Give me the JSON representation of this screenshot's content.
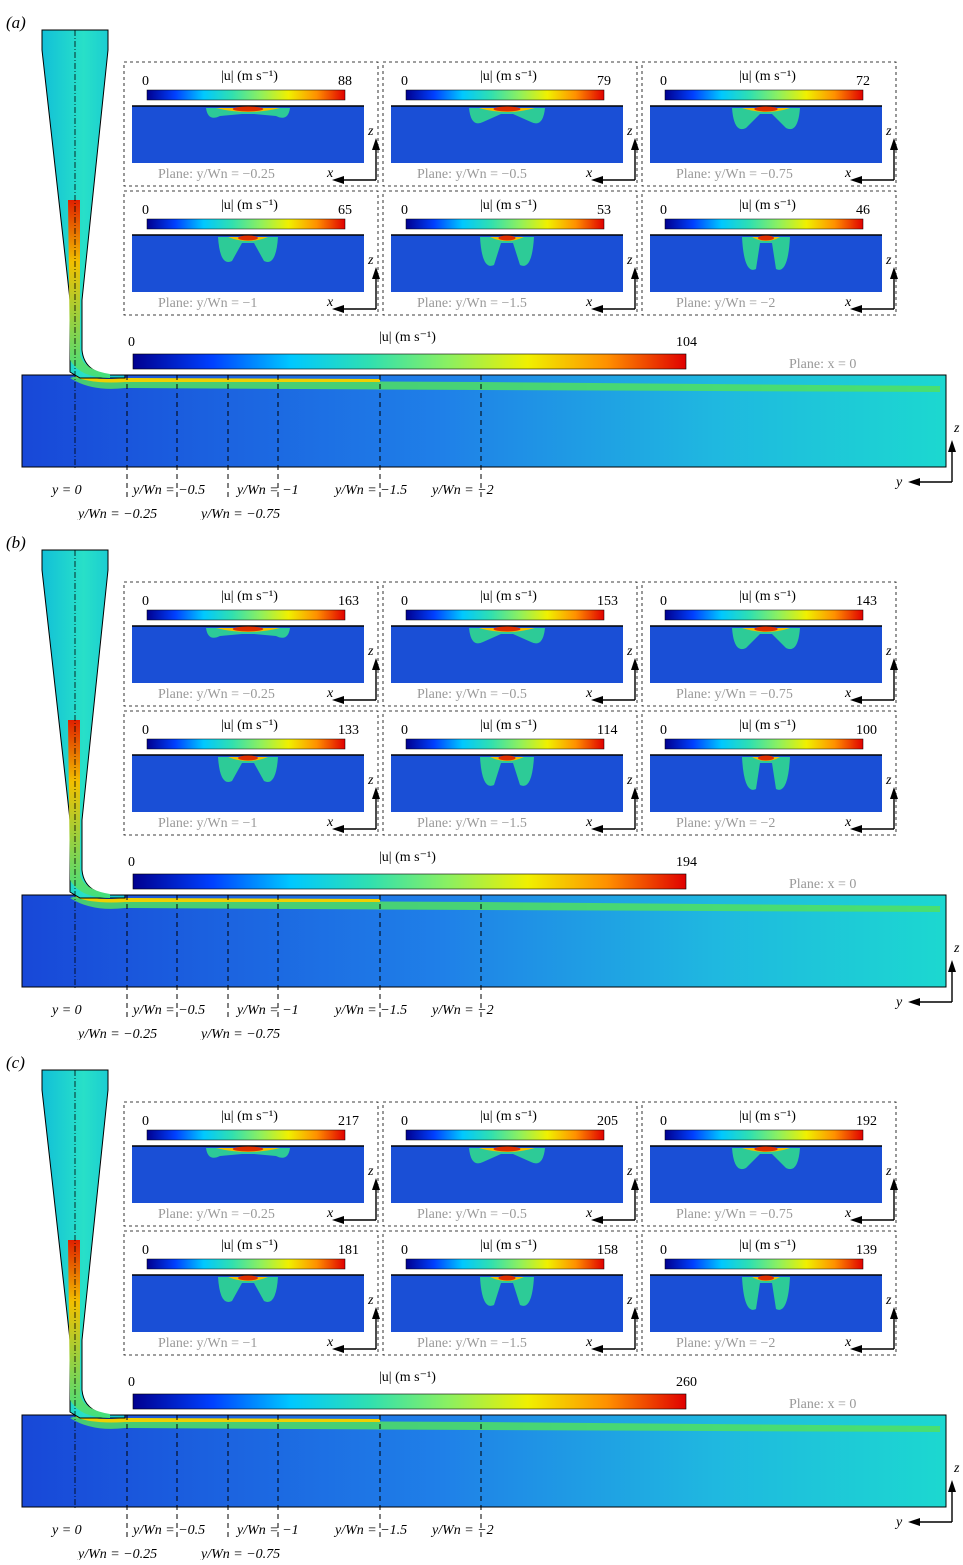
{
  "figure": {
    "colors": {
      "background_blue": "#1a4fd6",
      "jet_colormap": [
        "#00008f",
        "#0040ff",
        "#00c8ff",
        "#30e0b0",
        "#8cf060",
        "#f0f000",
        "#ff9000",
        "#e00000"
      ],
      "plane_label_gray": "#999999"
    },
    "common": {
      "colorbar_title": "|u| (m s⁻¹)",
      "colorbar_min": "0",
      "plane_prefix": "Plane:",
      "main_plane": "x = 0",
      "axis_z": "z",
      "axis_x": "x",
      "axis_y": "y",
      "centerline_label": "y = 0",
      "station_labels": [
        "y/Wn = −0.5",
        "y/Wn = −1",
        "y/Wn = −1.5",
        "y/Wn = −2"
      ],
      "station_labels_low": [
        "y/Wn = −0.25",
        "y/Wn = −0.75"
      ],
      "inset_planes": [
        "y/Wn = −0.25",
        "y/Wn = −0.5",
        "y/Wn = −0.75",
        "y/Wn = −1",
        "y/Wn = −1.5",
        "y/Wn = −2"
      ]
    },
    "panels": [
      {
        "label": "(a)",
        "main_max": "104",
        "inset_max": [
          "88",
          "79",
          "72",
          "65",
          "53",
          "46"
        ]
      },
      {
        "label": "(b)",
        "main_max": "194",
        "inset_max": [
          "163",
          "153",
          "143",
          "133",
          "114",
          "100"
        ]
      },
      {
        "label": "(c)",
        "main_max": "260",
        "inset_max": [
          "217",
          "205",
          "192",
          "181",
          "158",
          "139"
        ]
      }
    ]
  }
}
